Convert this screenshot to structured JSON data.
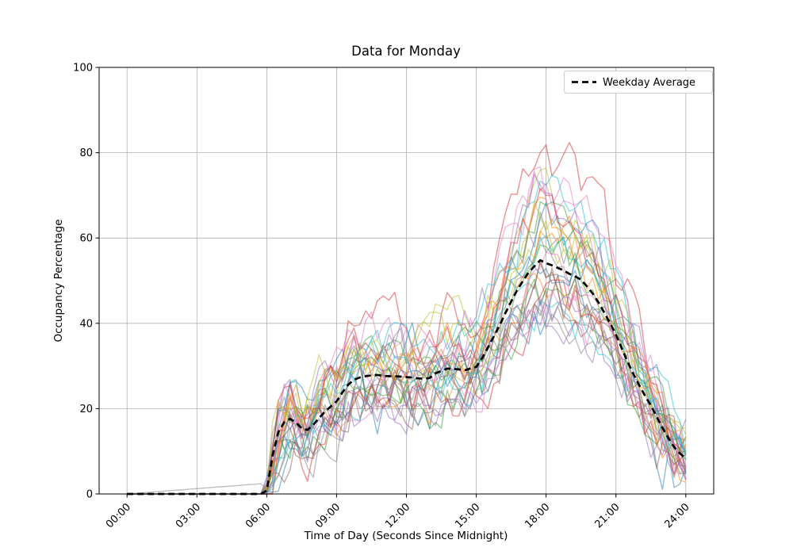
{
  "title": "Data for Monday",
  "axes": {
    "xlabel": "Time of Day (Seconds Since Midnight)",
    "ylabel": "Occupancy Percentage"
  },
  "legend": {
    "label": "Weekday Average"
  },
  "colors": {
    "background": "#ffffff",
    "grid": "#b0b0b0",
    "frame": "#000000",
    "average_line": "#000000",
    "legend_border": "#cccccc"
  },
  "chart_data": {
    "type": "line",
    "title": "Data for Monday",
    "xlabel": "Time of Day (Seconds Since Midnight)",
    "ylabel": "Occupancy Percentage",
    "x_tick_labels": [
      "00:00",
      "03:00",
      "06:00",
      "09:00",
      "12:00",
      "15:00",
      "18:00",
      "21:00",
      "24:00"
    ],
    "x_tick_hours": [
      0,
      3,
      6,
      9,
      12,
      15,
      18,
      21,
      24
    ],
    "y_tick_values": [
      0,
      20,
      40,
      60,
      80,
      100
    ],
    "ylim": [
      0,
      100
    ],
    "x_range_seconds": [
      -4320,
      90720
    ],
    "grid": true,
    "legend_position": "upper right",
    "sample_interval_hours": 0.25,
    "average_series": {
      "name": "Weekday Average",
      "style": "black dashed",
      "values": [
        0,
        0,
        0,
        0,
        0,
        0,
        0,
        0,
        0,
        0,
        0,
        0,
        0,
        0,
        0,
        0,
        0,
        0,
        0,
        0,
        0,
        0,
        0,
        0,
        0.8,
        9,
        14.5,
        16.8,
        17.6,
        16.8,
        15.4,
        15.0,
        16.2,
        17.8,
        19.3,
        20.5,
        21.7,
        23.8,
        25.6,
        26.8,
        27.3,
        27.6,
        27.8,
        27.9,
        27.7,
        27.6,
        27.6,
        27.5,
        27.4,
        27.3,
        27.1,
        27.0,
        27.2,
        28.3,
        28.8,
        29.4,
        29.3,
        29.2,
        29.0,
        29.4,
        29.8,
        31.8,
        34.3,
        36.9,
        39.5,
        42.4,
        45.1,
        47.7,
        49.9,
        51.9,
        53.4,
        54.8,
        54.1,
        53.6,
        53.0,
        52.4,
        51.6,
        51.0,
        50.2,
        48.7,
        47.0,
        44.9,
        42.5,
        40.0,
        37.4,
        34.2,
        31.0,
        28.1,
        25.5,
        23.0,
        20.8,
        18.1,
        15.5,
        13.1,
        11.0,
        9.5,
        8.3
      ]
    },
    "individual_series": {
      "alpha": 0.5,
      "line_width": 1.4,
      "noise_params": {
        "gain_min": 0.78,
        "gain_spread": 0.55,
        "walk_decay": 0.6,
        "walk_amp_min": 3.5,
        "walk_amp_spread": 3.0,
        "jitter": 1.0,
        "ramp_max": 6
      },
      "series": [
        {
          "color": "#7f7f7f",
          "seed": 101,
          "overnight": true,
          "gain": 0.85
        },
        {
          "color": "#1f77b4",
          "seed": 7
        },
        {
          "color": "#ff7f0e",
          "seed": 12
        },
        {
          "color": "#2ca02c",
          "seed": 23
        },
        {
          "color": "#d62728",
          "seed": 34,
          "gain": 1.4
        },
        {
          "color": "#9467bd",
          "seed": 45
        },
        {
          "color": "#8c564b",
          "seed": 56
        },
        {
          "color": "#e377c2",
          "seed": 67
        },
        {
          "color": "#7f7f7f",
          "seed": 78
        },
        {
          "color": "#bcbd22",
          "seed": 89
        },
        {
          "color": "#17becf",
          "seed": 90
        },
        {
          "color": "#1f77b4",
          "seed": 102
        },
        {
          "color": "#ff7f0e",
          "seed": 113
        },
        {
          "color": "#2ca02c",
          "seed": 124
        },
        {
          "color": "#d62728",
          "seed": 135
        },
        {
          "color": "#9467bd",
          "seed": 146
        },
        {
          "color": "#8c564b",
          "seed": 157
        },
        {
          "color": "#e377c2",
          "seed": 168
        },
        {
          "color": "#7f7f7f",
          "seed": 179
        },
        {
          "color": "#bcbd22",
          "seed": 190
        },
        {
          "color": "#17becf",
          "seed": 201,
          "gain": 1.3
        },
        {
          "color": "#1f77b4",
          "seed": 212
        },
        {
          "color": "#ff7f0e",
          "seed": 223
        },
        {
          "color": "#2ca02c",
          "seed": 234
        },
        {
          "color": "#d62728",
          "seed": 245
        },
        {
          "color": "#9467bd",
          "seed": 256
        },
        {
          "color": "#8c564b",
          "seed": 267
        },
        {
          "color": "#e377c2",
          "seed": 278
        },
        {
          "color": "#7f7f7f",
          "seed": 289
        },
        {
          "color": "#bcbd22",
          "seed": 300
        },
        {
          "color": "#17becf",
          "seed": 311
        },
        {
          "color": "#e377c2",
          "seed": 322
        }
      ]
    }
  }
}
